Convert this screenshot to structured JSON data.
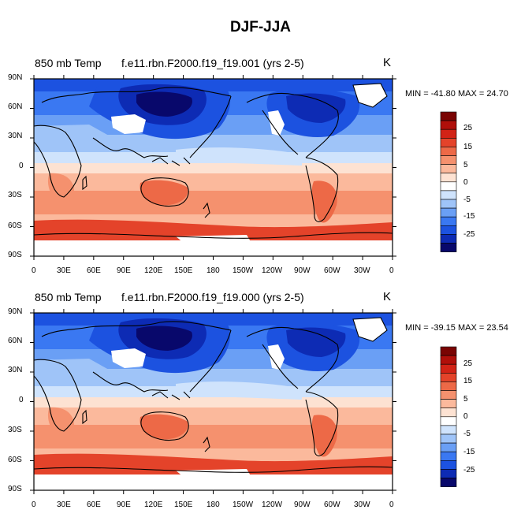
{
  "title": "DJF-JJA",
  "colors": {
    "scale": [
      "#08086b",
      "#0d2bb4",
      "#1c52e0",
      "#3a78f2",
      "#6a9ff5",
      "#9fc4f8",
      "#cfe3fc",
      "#ffffff",
      "#fde2d2",
      "#fbb99c",
      "#f5916e",
      "#ed6947",
      "#e4432a",
      "#d22316",
      "#b00f0a",
      "#7a0403"
    ],
    "land_outline": "#000000",
    "missing": "#ffffff"
  },
  "panels": [
    {
      "variable": "850 mb Temp",
      "case": "f.e11.rbn.F2000.f19_f19.001 (yrs 2-5)",
      "units": "K",
      "minmax": "MIN = -41.80 MAX =  24.70"
    },
    {
      "variable": "850 mb Temp",
      "case": "f.e11.rbn.F2000.f19_f19.000 (yrs 2-5)",
      "units": "K",
      "minmax": "MIN = -39.15 MAX =  23.54"
    }
  ],
  "lat_labels": [
    "90N",
    "60N",
    "30N",
    "0",
    "30S",
    "60S",
    "90S"
  ],
  "lon_labels": [
    "0",
    "30E",
    "60E",
    "90E",
    "120E",
    "150E",
    "180",
    "150W",
    "120W",
    "90W",
    "60W",
    "30W",
    "0"
  ],
  "colorbar_labels": [
    "25",
    "15",
    "5",
    "0",
    "-5",
    "-15",
    "-25"
  ]
}
